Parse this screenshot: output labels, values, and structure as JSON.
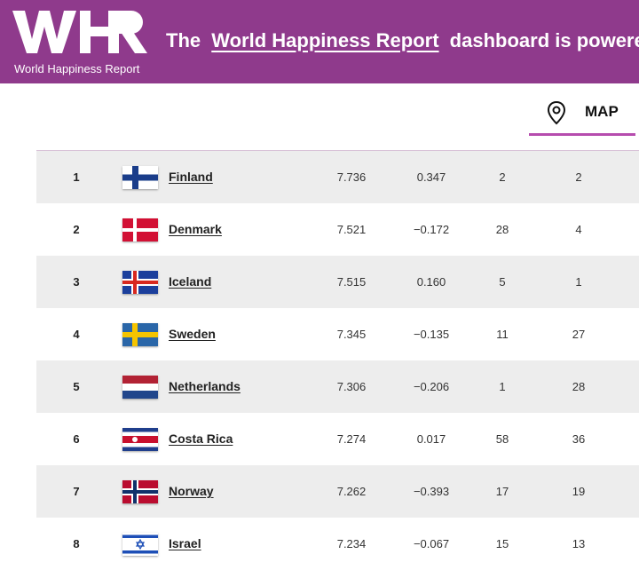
{
  "header": {
    "logo_subtitle": "World Happiness Report",
    "banner_prefix": "The",
    "banner_link": "World Happiness Report",
    "banner_suffix": "dashboard is powered",
    "background_color": "#8f3a8c"
  },
  "tabs": {
    "map_label": "MAP",
    "map_icon": "map-pin-icon",
    "accent_color": "#b64cae"
  },
  "rankings": [
    {
      "rank": "1",
      "country": "Finland",
      "score": "7.736",
      "change": "0.347",
      "col5": "2",
      "col6": "2",
      "flag": "finland"
    },
    {
      "rank": "2",
      "country": "Denmark",
      "score": "7.521",
      "change": "−0.172",
      "col5": "28",
      "col6": "4",
      "flag": "denmark"
    },
    {
      "rank": "3",
      "country": "Iceland",
      "score": "7.515",
      "change": "0.160",
      "col5": "5",
      "col6": "1",
      "flag": "iceland"
    },
    {
      "rank": "4",
      "country": "Sweden",
      "score": "7.345",
      "change": "−0.135",
      "col5": "11",
      "col6": "27",
      "flag": "sweden"
    },
    {
      "rank": "5",
      "country": "Netherlands",
      "score": "7.306",
      "change": "−0.206",
      "col5": "1",
      "col6": "28",
      "flag": "netherlands"
    },
    {
      "rank": "6",
      "country": "Costa Rica",
      "score": "7.274",
      "change": "0.017",
      "col5": "58",
      "col6": "36",
      "flag": "costa-rica"
    },
    {
      "rank": "7",
      "country": "Norway",
      "score": "7.262",
      "change": "−0.393",
      "col5": "17",
      "col6": "19",
      "flag": "norway"
    },
    {
      "rank": "8",
      "country": "Israel",
      "score": "7.234",
      "change": "−0.067",
      "col5": "15",
      "col6": "13",
      "flag": "israel"
    }
  ]
}
